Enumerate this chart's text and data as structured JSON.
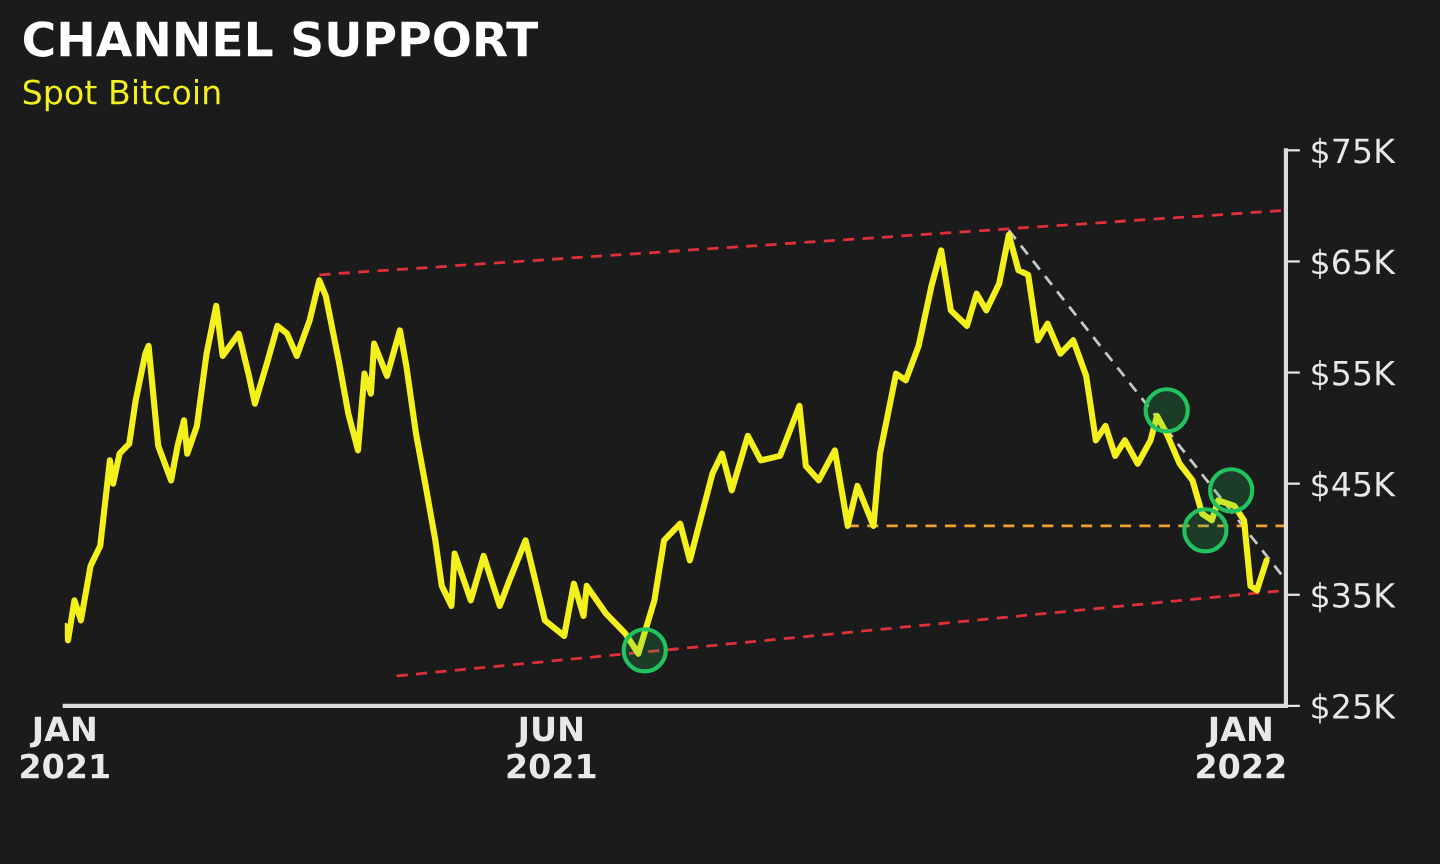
{
  "chart_data": {
    "type": "line",
    "title": "CHANNEL SUPPORT",
    "subtitle": "Spot Bitcoin",
    "grid": false,
    "legend": false,
    "tick_labels": "xy",
    "xlim": [
      "2021-01-01",
      "2022-01-15"
    ],
    "xticks": [
      {
        "value": "2021-01-01",
        "label": "JAN\n2021"
      },
      {
        "value": "2021-06-01",
        "label": "JUN\n2021"
      },
      {
        "value": "2022-01-01",
        "label": "JAN\n2022"
      }
    ],
    "ylim": [
      25,
      75
    ],
    "yticks": [
      {
        "value": 25,
        "label": "$25K"
      },
      {
        "value": 35,
        "label": "$35K"
      },
      {
        "value": 45,
        "label": "$45K"
      },
      {
        "value": 55,
        "label": "$55K"
      },
      {
        "value": 65,
        "label": "$65K"
      },
      {
        "value": 75,
        "label": "$75K"
      }
    ],
    "series": [
      {
        "color": "#f4f01c",
        "line_style": "solid",
        "marker": "none",
        "x": [
          "2021-01-01",
          "2021-01-02",
          "2021-01-04",
          "2021-01-06",
          "2021-01-09",
          "2021-01-12",
          "2021-01-15",
          "2021-01-16",
          "2021-01-18",
          "2021-01-21",
          "2021-01-23",
          "2021-01-26",
          "2021-01-27",
          "2021-01-30",
          "2021-02-03",
          "2021-02-05",
          "2021-02-07",
          "2021-02-08",
          "2021-02-11",
          "2021-02-14",
          "2021-02-17",
          "2021-02-19",
          "2021-02-24",
          "2021-02-27",
          "2021-03-01",
          "2021-03-05",
          "2021-03-08",
          "2021-03-11",
          "2021-03-14",
          "2021-03-18",
          "2021-03-21",
          "2021-03-23",
          "2021-03-27",
          "2021-03-30",
          "2021-04-02",
          "2021-04-04",
          "2021-04-06",
          "2021-04-07",
          "2021-04-11",
          "2021-04-15",
          "2021-04-17",
          "2021-04-20",
          "2021-04-23",
          "2021-04-26",
          "2021-04-28",
          "2021-05-01",
          "2021-05-02",
          "2021-05-07",
          "2021-05-11",
          "2021-05-16",
          "2021-05-19",
          "2021-05-24",
          "2021-05-30",
          "2021-06-05",
          "2021-06-08",
          "2021-06-11",
          "2021-06-12",
          "2021-06-18",
          "2021-06-24",
          "2021-06-28",
          "2021-07-03",
          "2021-07-06",
          "2021-07-11",
          "2021-07-14",
          "2021-07-21",
          "2021-07-24",
          "2021-07-27",
          "2021-08-01",
          "2021-08-05",
          "2021-08-11",
          "2021-08-17",
          "2021-08-19",
          "2021-08-23",
          "2021-08-28",
          "2021-09-01",
          "2021-09-04",
          "2021-09-09",
          "2021-09-11",
          "2021-09-16",
          "2021-09-19",
          "2021-09-23",
          "2021-09-27",
          "2021-09-30",
          "2021-10-03",
          "2021-10-08",
          "2021-10-11",
          "2021-10-14",
          "2021-10-18",
          "2021-10-21",
          "2021-10-24",
          "2021-10-27",
          "2021-10-30",
          "2021-11-02",
          "2021-11-06",
          "2021-11-10",
          "2021-11-14",
          "2021-11-17",
          "2021-11-20",
          "2021-11-23",
          "2021-11-26",
          "2021-11-30",
          "2021-12-04",
          "2021-12-06",
          "2021-12-09",
          "2021-12-13",
          "2021-12-17",
          "2021-12-20",
          "2021-12-23",
          "2021-12-25",
          "2021-12-30",
          "2022-01-02",
          "2022-01-04",
          "2022-01-06",
          "2022-01-09"
        ],
        "values": [
          32.2,
          30.9,
          34.5,
          32.7,
          37.6,
          39.4,
          47.1,
          45.0,
          47.7,
          48.6,
          52.5,
          56.7,
          57.4,
          48.4,
          45.3,
          48.4,
          50.7,
          47.7,
          50.2,
          56.7,
          61.0,
          56.5,
          58.5,
          54.9,
          52.2,
          56.1,
          59.2,
          58.5,
          56.5,
          59.7,
          63.3,
          61.9,
          56.1,
          51.3,
          48.0,
          54.9,
          53.1,
          57.6,
          54.7,
          58.8,
          55.6,
          49.5,
          44.8,
          39.9,
          35.8,
          34.0,
          38.7,
          34.5,
          38.5,
          34.0,
          36.3,
          39.9,
          32.7,
          31.3,
          36.0,
          33.1,
          35.8,
          33.3,
          31.5,
          29.7,
          34.5,
          39.9,
          41.4,
          38.1,
          45.9,
          47.7,
          44.4,
          49.3,
          47.1,
          47.5,
          52.0,
          46.6,
          45.3,
          48.0,
          41.2,
          44.8,
          41.2,
          47.7,
          54.9,
          54.3,
          57.4,
          62.8,
          66.0,
          60.6,
          59.2,
          62.1,
          60.6,
          63.0,
          67.4,
          64.2,
          63.8,
          57.9,
          59.4,
          56.7,
          57.9,
          54.7,
          48.9,
          50.2,
          47.5,
          48.9,
          46.8,
          48.9,
          51.1,
          49.5,
          46.8,
          45.3,
          42.3,
          41.7,
          43.5,
          43.0,
          41.7,
          35.8,
          35.4,
          38.1
        ]
      },
      {
        "type": "line",
        "color": "#e0303a",
        "line_style": "dashed",
        "marker": "none",
        "x": [
          "2021-03-21",
          "2022-01-15"
        ],
        "values": [
          63.8,
          69.6
        ]
      },
      {
        "type": "line",
        "color": "#e0303a",
        "line_style": "dashed",
        "marker": "none",
        "x": [
          "2021-04-14",
          "2022-01-15"
        ],
        "values": [
          27.7,
          35.4
        ]
      },
      {
        "type": "line",
        "color": "#c8c8c8",
        "line_style": "dashed",
        "marker": "none",
        "x": [
          "2021-10-21",
          "2022-01-15"
        ],
        "values": [
          67.8,
          36.3
        ]
      },
      {
        "type": "line",
        "color": "#f0a030",
        "line_style": "dashed",
        "marker": "none",
        "x": [
          "2021-09-01",
          "2022-01-15"
        ],
        "values": [
          41.2,
          41.2
        ]
      },
      {
        "type": "scatter",
        "color": "#22c35e",
        "marker": "circle",
        "x": [
          "2021-06-30",
          "2021-12-09",
          "2021-12-21",
          "2021-12-29"
        ],
        "values": [
          30.0,
          51.6,
          40.8,
          44.4
        ]
      }
    ]
  }
}
